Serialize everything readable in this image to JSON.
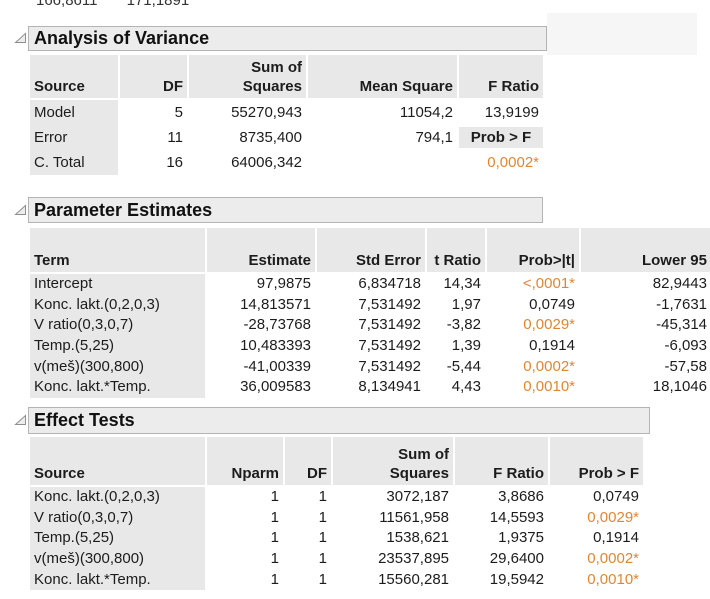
{
  "page": {
    "top_clipped_text": "166,8611       171,1891"
  },
  "colors": {
    "significant_orange": "#df8634",
    "header_gray": "#e8e8e8",
    "title_box_gray": "#ececec"
  },
  "sections": [
    {
      "title": "Analysis of Variance",
      "columns": [
        {
          "label": "Source"
        },
        {
          "label": "DF"
        },
        {
          "label": "Squares",
          "label_top": "Sum of"
        },
        {
          "label": "Mean Square"
        },
        {
          "label": "F Ratio"
        }
      ],
      "rows": [
        [
          "Model",
          "5",
          "55270,943",
          "11054,2",
          "13,9199"
        ],
        [
          "Error",
          "11",
          "8735,400",
          "794,1",
          {
            "v": "Prob > F",
            "kind": "inline_header"
          }
        ],
        [
          "C. Total",
          "16",
          "64006,342",
          "",
          {
            "v": "0,0002*",
            "sig": true
          }
        ]
      ]
    },
    {
      "title": "Parameter Estimates",
      "columns": [
        {
          "label": "Term"
        },
        {
          "label": "Estimate"
        },
        {
          "label": "Std Error"
        },
        {
          "label": "t Ratio"
        },
        {
          "label": "Prob>|t|"
        },
        {
          "label": "Lower 95"
        }
      ],
      "rows": [
        [
          "Intercept",
          "97,9875",
          "6,834718",
          "14,34",
          {
            "v": "<,0001*",
            "sig": true
          },
          "82,9443"
        ],
        [
          "Konc. lakt.(0,2,0,3)",
          "14,813571",
          "7,531492",
          "1,97",
          "0,0749",
          "-1,7631"
        ],
        [
          "V ratio(0,3,0,7)",
          "-28,73768",
          "7,531492",
          "-3,82",
          {
            "v": "0,0029*",
            "sig": true
          },
          "-45,314"
        ],
        [
          "Temp.(5,25)",
          "10,483393",
          "7,531492",
          "1,39",
          "0,1914",
          "-6,093"
        ],
        [
          "v(meš)(300,800)",
          "-41,00339",
          "7,531492",
          "-5,44",
          {
            "v": "0,0002*",
            "sig": true
          },
          "-57,58"
        ],
        [
          "Konc. lakt.*Temp.",
          "36,009583",
          "8,134941",
          "4,43",
          {
            "v": "0,0010*",
            "sig": true
          },
          "18,1046"
        ]
      ]
    },
    {
      "title": "Effect Tests",
      "columns": [
        {
          "label": "Source"
        },
        {
          "label": "Nparm"
        },
        {
          "label": "DF"
        },
        {
          "label": "Squares",
          "label_top": "Sum of"
        },
        {
          "label": "F Ratio"
        },
        {
          "label": "Prob > F"
        }
      ],
      "rows": [
        [
          "Konc. lakt.(0,2,0,3)",
          "1",
          "1",
          "3072,187",
          "3,8686",
          "0,0749"
        ],
        [
          "V ratio(0,3,0,7)",
          "1",
          "1",
          "11561,958",
          "14,5593",
          {
            "v": "0,0029*",
            "sig": true
          }
        ],
        [
          "Temp.(5,25)",
          "1",
          "1",
          "1538,621",
          "1,9375",
          "0,1914"
        ],
        [
          "v(meš)(300,800)",
          "1",
          "1",
          "23537,895",
          "29,6400",
          {
            "v": "0,0002*",
            "sig": true
          }
        ],
        [
          "Konc. lakt.*Temp.",
          "1",
          "1",
          "15560,281",
          "19,5942",
          {
            "v": "0,0010*",
            "sig": true
          }
        ]
      ]
    }
  ]
}
